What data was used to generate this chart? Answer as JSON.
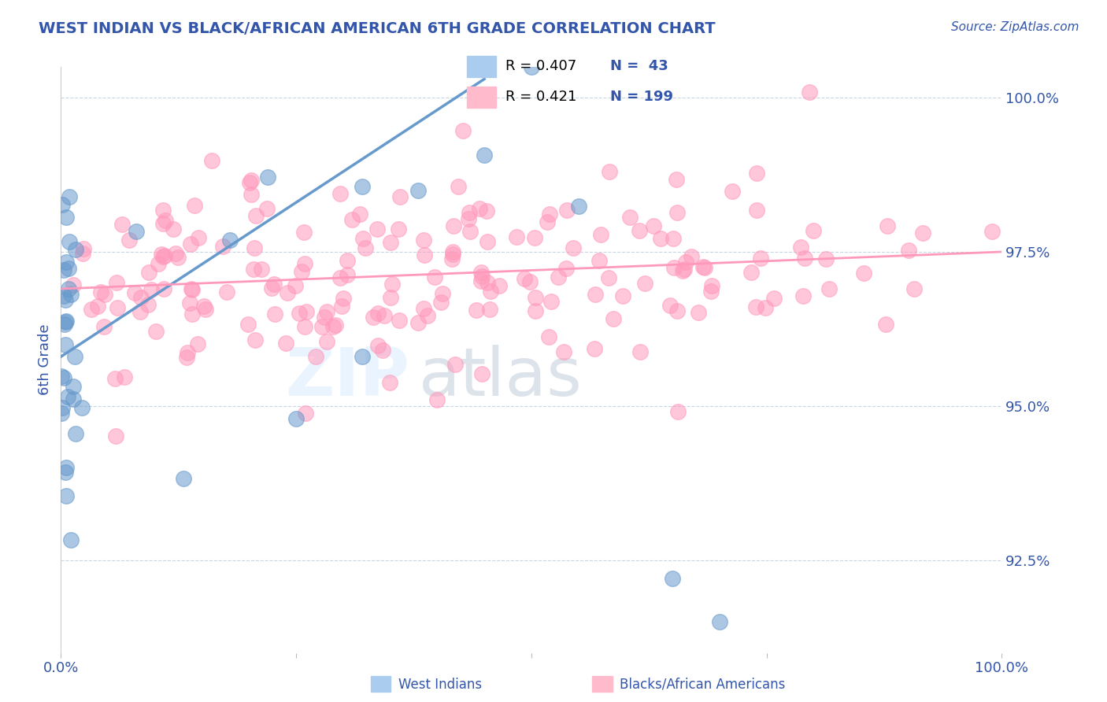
{
  "title": "WEST INDIAN VS BLACK/AFRICAN AMERICAN 6TH GRADE CORRELATION CHART",
  "source": "Source: ZipAtlas.com",
  "ylabel": "6th Grade",
  "yticks": [
    0.925,
    0.95,
    0.975,
    1.0
  ],
  "ytick_labels": [
    "92.5%",
    "95.0%",
    "97.5%",
    "100.0%"
  ],
  "blue_color": "#6699CC",
  "pink_color": "#FF99BB",
  "title_color": "#3355AA",
  "tick_color": "#3355AA",
  "source_color": "#3355AA",
  "background_color": "#FFFFFF",
  "xlim": [
    0.0,
    1.0
  ],
  "ylim": [
    0.91,
    1.005
  ],
  "blue_trend_x0": 0.0,
  "blue_trend_y0": 0.958,
  "blue_trend_x1": 0.45,
  "blue_trend_y1": 1.003,
  "pink_trend_x0": 0.0,
  "pink_trend_y0": 0.969,
  "pink_trend_x1": 1.0,
  "pink_trend_y1": 0.975,
  "legend_items": [
    {
      "color": "#99BBDD",
      "label": "R = 0.407   N =  43"
    },
    {
      "color": "#FFBBCC",
      "label": "R = 0.421   N = 199"
    }
  ],
  "bottom_legend": [
    {
      "color": "#99BBDD",
      "label": "West Indians"
    },
    {
      "color": "#FFBBCC",
      "label": "Blacks/African Americans"
    }
  ],
  "watermark_zip": "ZIP",
  "watermark_atlas": "atlas"
}
